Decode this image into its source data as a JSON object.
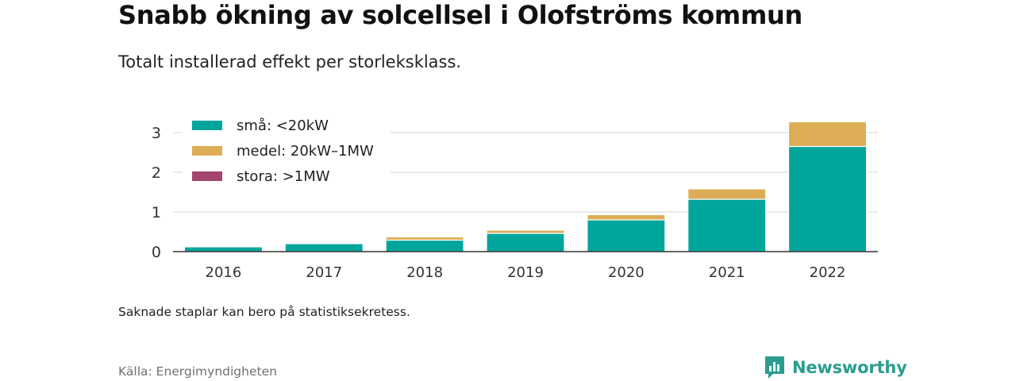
{
  "header": {
    "title": "Snabb ökning av solcellsel i Olofströms kommun",
    "subtitle": "Totalt installerad effekt per storleksklass."
  },
  "footer": {
    "note": "Saknade staplar kan bero på statistiksekretess.",
    "source": "Källa: Energimyndigheten",
    "brand": "Newsworthy"
  },
  "colors": {
    "small": "#00a59b",
    "medium": "#dcad55",
    "large": "#a3456c",
    "brand": "#2a9d8f"
  },
  "icons": {
    "brand_logo": "newsworthy-logo-icon"
  },
  "chart_data": {
    "type": "bar",
    "stacked": true,
    "title": "Snabb ökning av solcellsel i Olofströms kommun",
    "subtitle": "Totalt installerad effekt per storleksklass.",
    "xlabel": "",
    "ylabel": "",
    "categories": [
      "2016",
      "2017",
      "2018",
      "2019",
      "2020",
      "2021",
      "2022"
    ],
    "series": [
      {
        "name": "små: <20kW",
        "color": "#00a59b",
        "values": [
          0.12,
          0.2,
          0.29,
          0.46,
          0.8,
          1.32,
          2.65
        ]
      },
      {
        "name": "medel: 20kW–1MW",
        "color": "#dcad55",
        "values": [
          0,
          0,
          0.08,
          0.08,
          0.13,
          0.26,
          0.62
        ]
      },
      {
        "name": "stora: >1MW",
        "color": "#a3456c",
        "values": [
          0,
          0,
          0,
          0,
          0,
          0,
          0
        ]
      }
    ],
    "ylim": [
      0,
      3.3
    ],
    "yticks": [
      0,
      1,
      2,
      3
    ],
    "grid": true,
    "legend_position": "top-left"
  }
}
